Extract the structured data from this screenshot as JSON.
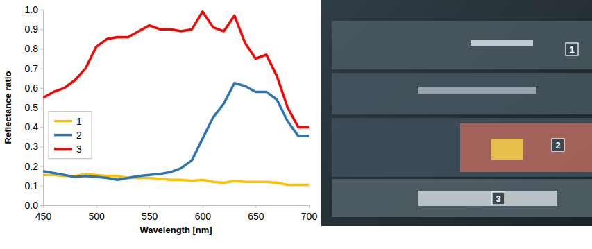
{
  "chart_data": {
    "type": "line",
    "x_label": "Wavelength [nm]",
    "y_label": "Reflectance ratio",
    "x": [
      450,
      460,
      470,
      480,
      490,
      500,
      510,
      520,
      530,
      540,
      550,
      560,
      570,
      580,
      590,
      600,
      610,
      620,
      630,
      640,
      650,
      660,
      670,
      680,
      690,
      700
    ],
    "series": [
      {
        "name": "1",
        "color": "#ffc000",
        "values": [
          0.155,
          0.155,
          0.15,
          0.15,
          0.16,
          0.155,
          0.15,
          0.15,
          0.14,
          0.14,
          0.14,
          0.135,
          0.13,
          0.13,
          0.125,
          0.13,
          0.12,
          0.115,
          0.125,
          0.12,
          0.12,
          0.12,
          0.115,
          0.105,
          0.105,
          0.105
        ]
      },
      {
        "name": "2",
        "color": "#2e75b6",
        "values": [
          0.175,
          0.165,
          0.155,
          0.145,
          0.15,
          0.145,
          0.14,
          0.13,
          0.14,
          0.15,
          0.155,
          0.16,
          0.17,
          0.19,
          0.23,
          0.34,
          0.45,
          0.52,
          0.625,
          0.61,
          0.58,
          0.58,
          0.54,
          0.43,
          0.355,
          0.355
        ]
      },
      {
        "name": "3",
        "color": "#ff0000",
        "values": [
          0.55,
          0.58,
          0.6,
          0.64,
          0.7,
          0.81,
          0.85,
          0.86,
          0.86,
          0.89,
          0.92,
          0.9,
          0.9,
          0.89,
          0.9,
          0.99,
          0.91,
          0.89,
          0.97,
          0.83,
          0.75,
          0.77,
          0.66,
          0.5,
          0.4,
          0.4
        ]
      }
    ],
    "xlim": [
      450,
      700
    ],
    "xticks": [
      450,
      500,
      550,
      600,
      650,
      700
    ],
    "ylim": [
      0,
      1
    ],
    "yticks": [
      {
        "value": 0,
        "label": "0.0"
      },
      {
        "value": 0.1,
        "label": "0.1"
      },
      {
        "value": 0.2,
        "label": "0.2"
      },
      {
        "value": 0.3,
        "label": "0.3"
      },
      {
        "value": 0.4,
        "label": "0.4"
      },
      {
        "value": 0.5,
        "label": "0.5"
      },
      {
        "value": 0.6,
        "label": "0.6"
      },
      {
        "value": 0.7,
        "label": "0.7"
      },
      {
        "value": 0.8,
        "label": "0.8"
      },
      {
        "value": 0.9,
        "label": "0.9"
      },
      {
        "value": 1,
        "label": "1.0"
      }
    ],
    "grid": false,
    "legend": "left"
  },
  "photo": {
    "markers": [
      "1",
      "2",
      "3"
    ]
  }
}
